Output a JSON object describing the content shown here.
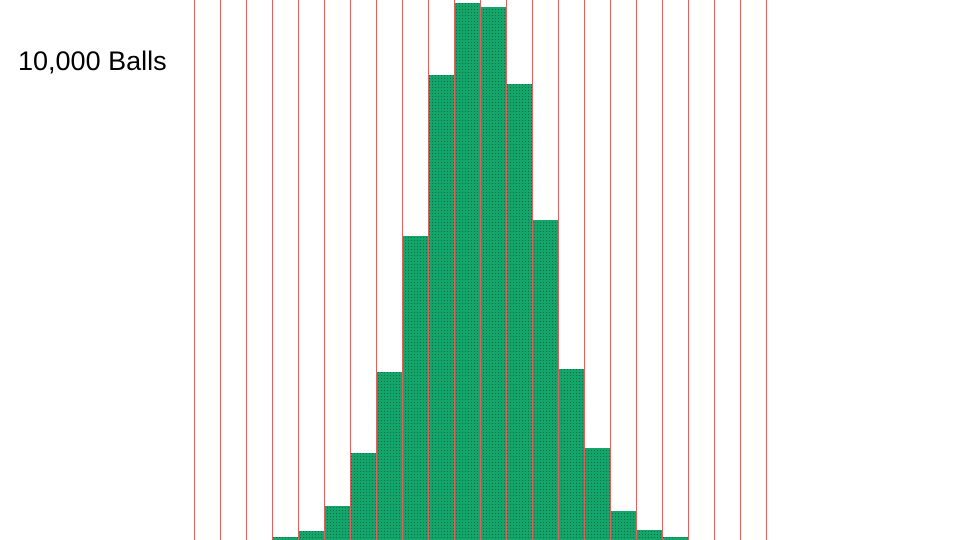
{
  "title": "10,000 Balls"
}
